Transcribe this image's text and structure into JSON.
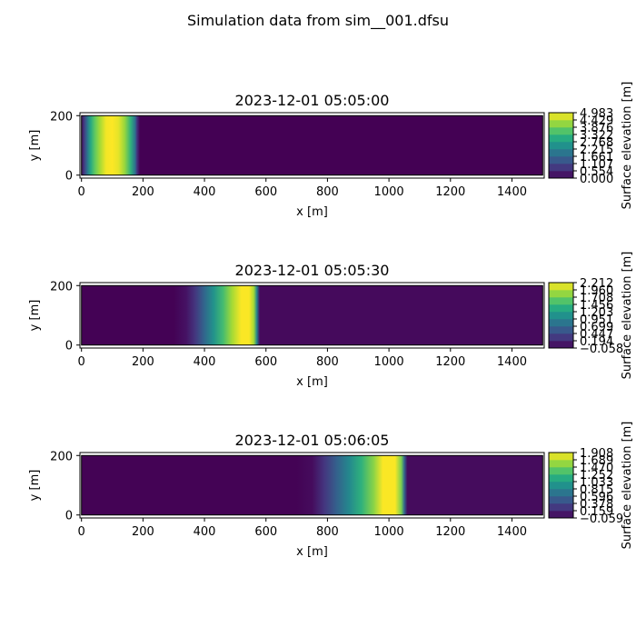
{
  "figure": {
    "suptitle": "Simulation data from sim__001.dfsu"
  },
  "chart_data": [
    {
      "type": "heatmap",
      "title": "2023-12-01 05:05:00",
      "xlabel": "x [m]",
      "ylabel": "y [m]",
      "colorbar_label": "Surface elevation [m]",
      "xlim": [
        -5,
        1505
      ],
      "ylim": [
        -10,
        210
      ],
      "xticks": [
        0,
        200,
        400,
        600,
        800,
        1000,
        1200,
        1400
      ],
      "yticks": [
        0,
        200
      ],
      "domain_x": [
        0,
        1500
      ],
      "domain_y": [
        0,
        200
      ],
      "colorbar_ticks": [
        "0.000",
        "0.554",
        "1.107",
        "1.661",
        "2.215",
        "2.768",
        "3.322",
        "3.876",
        "4.429",
        "4.983"
      ],
      "profile_x": [
        0,
        10,
        20,
        30,
        45,
        60,
        80,
        100,
        120,
        140,
        160,
        175,
        180,
        190,
        1500
      ],
      "profile_value": [
        0.2,
        1.0,
        2.0,
        3.0,
        3.8,
        4.3,
        4.9,
        4.98,
        4.8,
        4.2,
        3.2,
        1.8,
        0.8,
        0.0,
        0.0
      ]
    },
    {
      "type": "heatmap",
      "title": "2023-12-01 05:05:30",
      "xlabel": "x [m]",
      "ylabel": "y [m]",
      "colorbar_label": "Surface elevation [m]",
      "xlim": [
        -5,
        1505
      ],
      "ylim": [
        -10,
        210
      ],
      "xticks": [
        0,
        200,
        400,
        600,
        800,
        1000,
        1200,
        1400
      ],
      "yticks": [
        0,
        200
      ],
      "domain_x": [
        0,
        1500
      ],
      "domain_y": [
        0,
        200
      ],
      "colorbar_ticks": [
        "−0.058",
        "0.194",
        "0.447",
        "0.699",
        "0.951",
        "1.203",
        "1.456",
        "1.708",
        "1.960",
        "2.212"
      ],
      "profile_x": [
        0,
        300,
        340,
        370,
        400,
        430,
        460,
        490,
        520,
        545,
        560,
        570,
        580,
        1500
      ],
      "profile_value": [
        -0.05,
        -0.05,
        0.05,
        0.3,
        0.7,
        1.1,
        1.5,
        1.9,
        2.2,
        2.2,
        1.9,
        1.0,
        0.0,
        0.0
      ]
    },
    {
      "type": "heatmap",
      "title": "2023-12-01 05:06:05",
      "xlabel": "x [m]",
      "ylabel": "y [m]",
      "colorbar_label": "Surface elevation [m]",
      "xlim": [
        -5,
        1505
      ],
      "ylim": [
        -10,
        210
      ],
      "xticks": [
        0,
        200,
        400,
        600,
        800,
        1000,
        1200,
        1400
      ],
      "yticks": [
        0,
        200
      ],
      "domain_x": [
        0,
        1500
      ],
      "domain_y": [
        0,
        200
      ],
      "colorbar_ticks": [
        "−0.059",
        "0.159",
        "0.378",
        "0.596",
        "0.815",
        "1.033",
        "1.252",
        "1.470",
        "1.689",
        "1.908"
      ],
      "profile_x": [
        0,
        700,
        750,
        790,
        830,
        870,
        910,
        950,
        980,
        1020,
        1040,
        1050,
        1060,
        1500
      ],
      "profile_value": [
        -0.05,
        -0.05,
        0.0,
        0.25,
        0.55,
        0.85,
        1.2,
        1.55,
        1.9,
        1.9,
        1.5,
        0.6,
        0.0,
        0.0
      ]
    }
  ],
  "colormap": [
    "#440154",
    "#472d7b",
    "#3b528b",
    "#2c728e",
    "#21918c",
    "#28ae80",
    "#5ec962",
    "#addc30",
    "#fde725"
  ]
}
